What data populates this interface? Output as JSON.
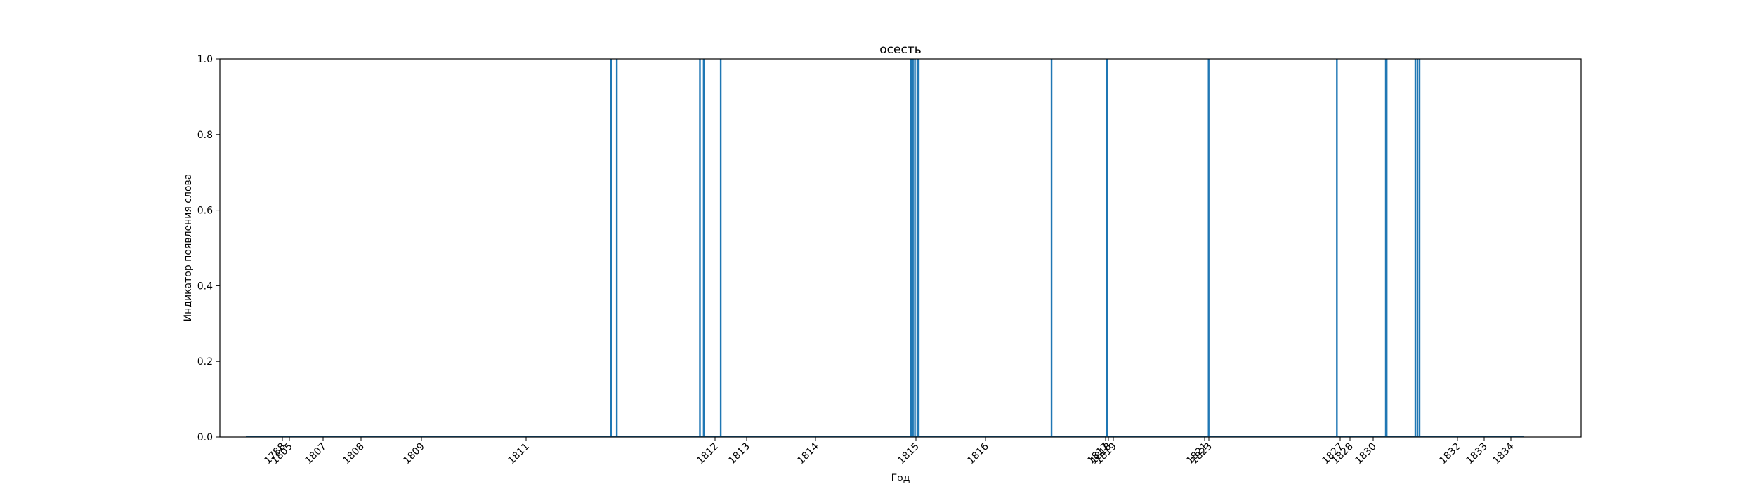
{
  "chart_data": {
    "type": "bar",
    "title": "осесть",
    "xlabel": "Год",
    "ylabel": "Индикатор появления слова",
    "ylim": [
      0,
      1
    ],
    "yticks": [
      "0.0",
      "0.2",
      "0.4",
      "0.6",
      "0.8",
      "1.0"
    ],
    "xticks": [
      {
        "label": "1788",
        "x": 1788.0
      },
      {
        "label": "1805",
        "x": 1805.0
      },
      {
        "label": "1807",
        "x": 1807.0
      },
      {
        "label": "1808",
        "x": 1808.0
      },
      {
        "label": "1809",
        "x": 1809.0
      },
      {
        "label": "1811",
        "x": 1811.0
      },
      {
        "label": "1812",
        "x": 1812.0
      },
      {
        "label": "1813",
        "x": 1813.0
      },
      {
        "label": "1814",
        "x": 1814.0
      },
      {
        "label": "1815",
        "x": 1815.0
      },
      {
        "label": "1816",
        "x": 1816.0
      },
      {
        "label": "1817",
        "x": 1817.0
      },
      {
        "label": "1818",
        "x": 1818.0
      },
      {
        "label": "1819",
        "x": 1819.0
      },
      {
        "label": "1821",
        "x": 1821.0
      },
      {
        "label": "1823",
        "x": 1823.0
      },
      {
        "label": "1827",
        "x": 1827.0
      },
      {
        "label": "1828",
        "x": 1828.0
      },
      {
        "label": "1830",
        "x": 1830.0
      },
      {
        "label": "1832",
        "x": 1832.0
      },
      {
        "label": "1833",
        "x": 1833.0
      },
      {
        "label": "1834",
        "x": 1834.0
      }
    ],
    "x": [
      1811.45,
      1811.48,
      1811.92,
      1811.94,
      1812.18,
      1814.95,
      1814.97,
      1814.99,
      1815.02,
      1815.04,
      1816.55,
      1817.55,
      1817.57,
      1822.9,
      1826.9,
      1830.3,
      1830.32,
      1831.0,
      1831.05,
      1831.1
    ],
    "values": [
      1,
      1,
      1,
      1,
      1,
      1,
      1,
      1,
      1,
      1,
      1,
      1,
      1,
      1,
      1,
      1,
      1,
      1,
      1,
      1
    ],
    "bar_color": "#1f77b4"
  }
}
